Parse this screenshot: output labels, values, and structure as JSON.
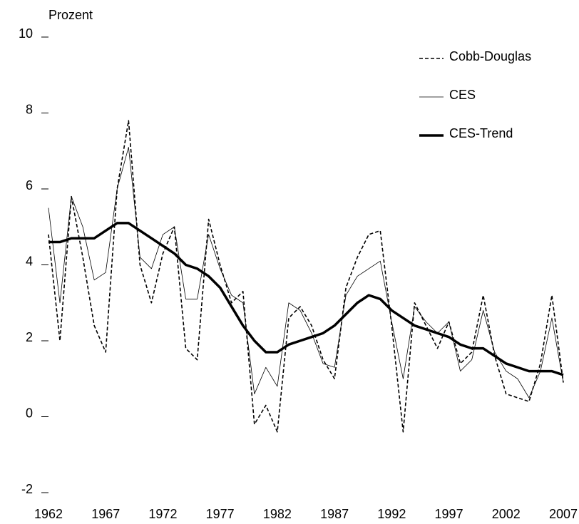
{
  "chart_data": {
    "type": "line",
    "y_label": "Prozent",
    "x": [
      1962,
      1963,
      1964,
      1965,
      1966,
      1967,
      1968,
      1969,
      1970,
      1971,
      1972,
      1973,
      1974,
      1975,
      1976,
      1977,
      1978,
      1979,
      1980,
      1981,
      1982,
      1983,
      1984,
      1985,
      1986,
      1987,
      1988,
      1989,
      1990,
      1991,
      1992,
      1993,
      1994,
      1995,
      1996,
      1997,
      1998,
      1999,
      2000,
      2001,
      2002,
      2003,
      2004,
      2005,
      2006,
      2007
    ],
    "series": [
      {
        "name": "Cobb-Douglas",
        "color": "#000000",
        "style": "dashed",
        "values": [
          4.8,
          2.0,
          5.8,
          4.2,
          2.4,
          1.7,
          6.0,
          7.8,
          4.0,
          3.0,
          4.3,
          5.0,
          1.8,
          1.5,
          5.2,
          4.0,
          3.0,
          3.3,
          -0.2,
          0.3,
          -0.4,
          2.6,
          2.9,
          2.4,
          1.5,
          1.0,
          3.4,
          4.2,
          4.8,
          4.9,
          2.4,
          -0.4,
          3.0,
          2.4,
          1.8,
          2.5,
          1.4,
          1.7,
          3.2,
          1.6,
          0.6,
          0.5,
          0.4,
          1.4,
          3.2,
          0.9
        ]
      },
      {
        "name": "CES",
        "color": "#000000",
        "style": "thin",
        "values": [
          5.5,
          3.0,
          5.8,
          5.0,
          3.6,
          3.8,
          6.0,
          7.1,
          4.2,
          3.9,
          4.8,
          5.0,
          3.1,
          3.1,
          4.8,
          3.9,
          3.2,
          3.0,
          0.6,
          1.3,
          0.8,
          3.0,
          2.8,
          2.2,
          1.4,
          1.3,
          3.2,
          3.7,
          3.9,
          4.1,
          2.5,
          1.0,
          2.9,
          2.5,
          2.2,
          2.5,
          1.2,
          1.5,
          2.8,
          1.7,
          1.2,
          1.0,
          0.5,
          1.2,
          2.6,
          0.9
        ]
      },
      {
        "name": "CES-Trend",
        "color": "#000000",
        "style": "thick",
        "values": [
          4.6,
          4.6,
          4.7,
          4.7,
          4.7,
          4.9,
          5.1,
          5.1,
          4.9,
          4.7,
          4.5,
          4.3,
          4.0,
          3.9,
          3.7,
          3.4,
          2.9,
          2.4,
          2.0,
          1.7,
          1.7,
          1.9,
          2.0,
          2.1,
          2.2,
          2.4,
          2.7,
          3.0,
          3.2,
          3.1,
          2.8,
          2.6,
          2.4,
          2.3,
          2.2,
          2.1,
          1.9,
          1.8,
          1.8,
          1.6,
          1.4,
          1.3,
          1.2,
          1.2,
          1.2,
          1.1
        ]
      }
    ],
    "xlim": [
      1962,
      2007
    ],
    "xticks": [
      1962,
      1967,
      1972,
      1977,
      1982,
      1987,
      1992,
      1997,
      2002,
      2007
    ],
    "ylim": [
      -2,
      10
    ],
    "yticks": [
      -2,
      0,
      2,
      4,
      6,
      8,
      10
    ],
    "grid": false,
    "legend": "top-right"
  }
}
